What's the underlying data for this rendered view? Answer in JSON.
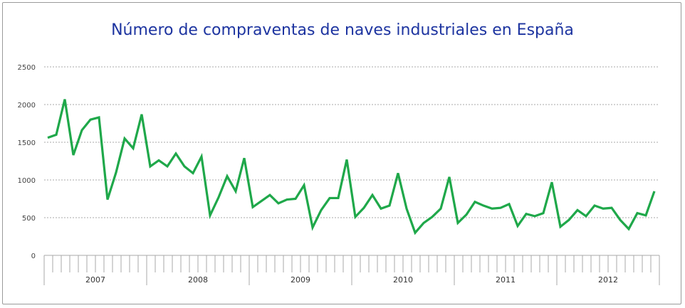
{
  "chart_data": {
    "type": "line",
    "title": "Número de compraventas de naves industriales en España",
    "xlabel": "",
    "ylabel": "",
    "ylim": [
      0,
      2500
    ],
    "yticks": [
      "0",
      "500",
      "1000",
      "1500",
      "2000",
      "2500"
    ],
    "grid": true,
    "years": [
      "2007",
      "2008",
      "2009",
      "2010",
      "2011",
      "2012"
    ],
    "months_per_year": 12,
    "line_color": "#1fa84a",
    "title_color": "#1d34a0",
    "values": [
      1560,
      1600,
      2070,
      1330,
      1660,
      1800,
      1830,
      740,
      1100,
      1550,
      1420,
      1870,
      1180,
      1260,
      1180,
      1350,
      1180,
      1090,
      1310,
      530,
      770,
      1050,
      850,
      1290,
      640,
      720,
      800,
      690,
      740,
      750,
      930,
      370,
      600,
      760,
      760,
      1270,
      510,
      630,
      800,
      620,
      660,
      1090,
      620,
      300,
      430,
      510,
      620,
      1040,
      430,
      540,
      710,
      660,
      620,
      630,
      680,
      390,
      550,
      520,
      560,
      970,
      380,
      470,
      600,
      520,
      660,
      620,
      630,
      470,
      350,
      560,
      530,
      850
    ]
  }
}
